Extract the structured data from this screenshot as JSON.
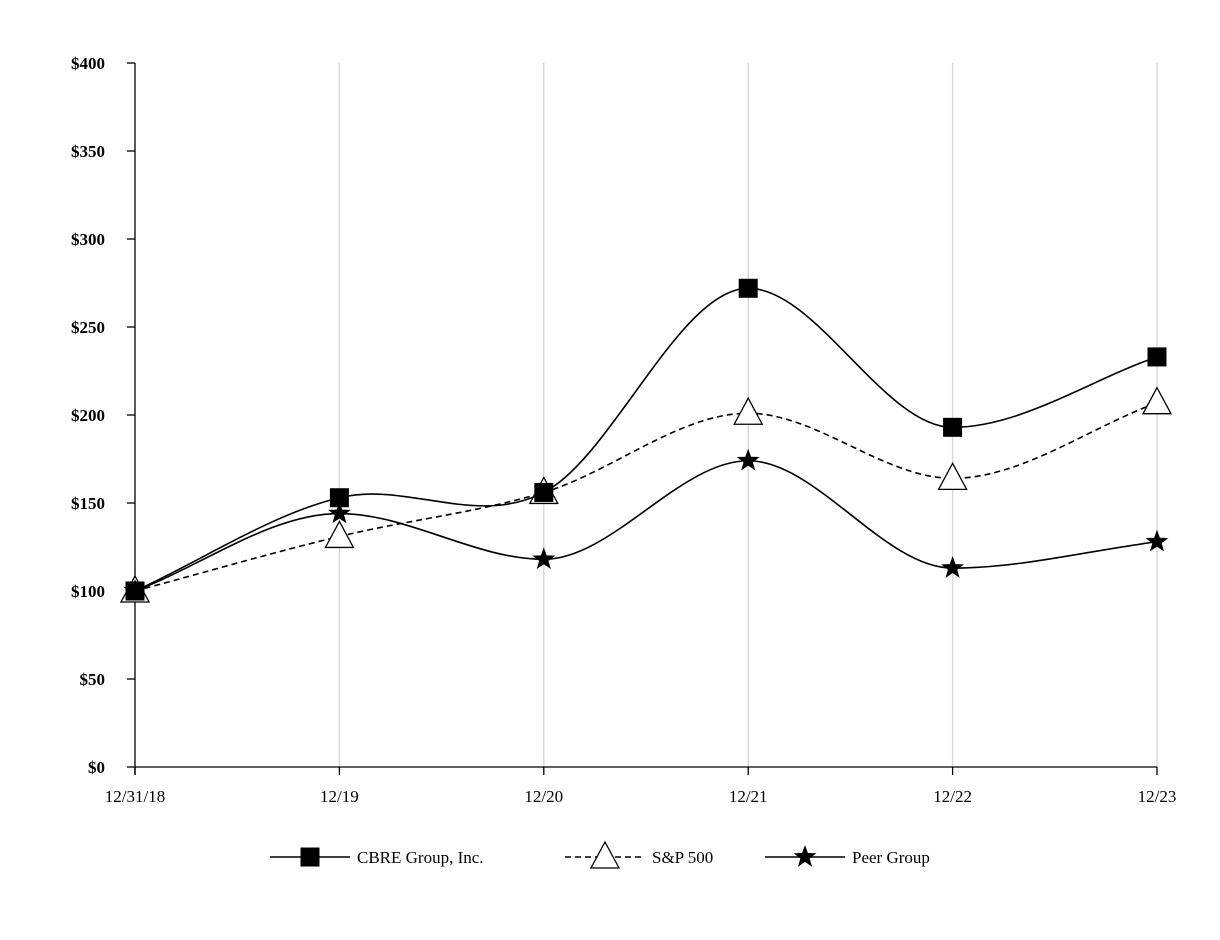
{
  "chart_data": {
    "type": "line",
    "title": "",
    "xlabel": "",
    "ylabel": "",
    "categories": [
      "12/31/18",
      "12/19",
      "12/20",
      "12/21",
      "12/22",
      "12/23"
    ],
    "y_tick_labels": [
      "$0",
      "$50",
      "$100",
      "$150",
      "$200",
      "$250",
      "$300",
      "$350",
      "$400"
    ],
    "y_tick_values": [
      0,
      50,
      100,
      150,
      200,
      250,
      300,
      350,
      400
    ],
    "ylim": [
      0,
      400
    ],
    "grid": "vertical",
    "legend_position": "bottom-center",
    "series": [
      {
        "name": "CBRE Group, Inc.",
        "marker": "square",
        "line_style": "solid",
        "values": [
          100,
          153,
          156,
          272,
          193,
          233
        ]
      },
      {
        "name": "S&P 500",
        "marker": "triangle-open",
        "line_style": "dashed",
        "values": [
          100,
          131,
          156,
          201,
          164,
          207
        ]
      },
      {
        "name": "Peer Group",
        "marker": "star",
        "line_style": "solid",
        "values": [
          100,
          144,
          118,
          174,
          113,
          128
        ]
      }
    ]
  }
}
